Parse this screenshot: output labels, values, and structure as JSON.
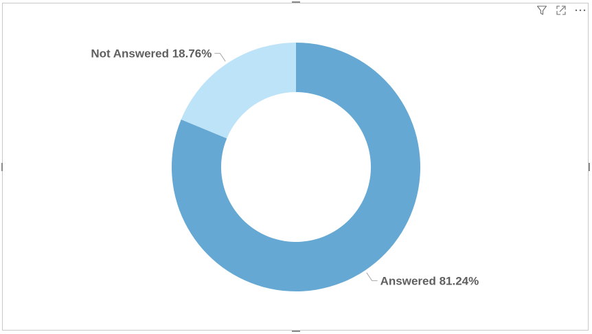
{
  "visual_header": {
    "icons": [
      "filter-icon",
      "focus-mode-icon",
      "more-options-icon"
    ]
  },
  "chart_data": {
    "type": "pie",
    "variant": "donut",
    "title": "",
    "categories": [
      "Answered",
      "Not Answered"
    ],
    "values": [
      81.24,
      18.76
    ],
    "unit": "%",
    "colors": [
      "#64a8d3",
      "#bde3f8"
    ],
    "data_labels": [
      "Answered 81.24%",
      "Not Answered 18.76%"
    ],
    "legend": "none"
  }
}
